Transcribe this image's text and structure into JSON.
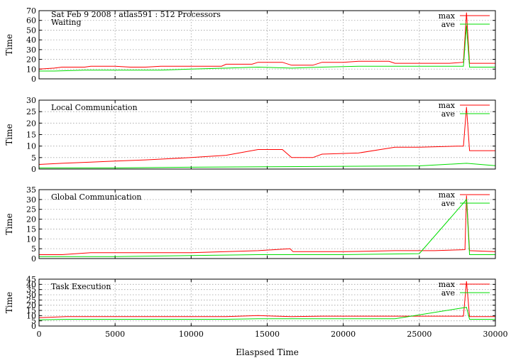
{
  "chart_data": {
    "type": "line",
    "title": "Sat Feb 9 2008 : atlas591 : 512 Processors",
    "xlabel": "Elaspsed Time",
    "xlim": [
      0,
      30000
    ],
    "xticks": [
      "0",
      "5000",
      "10000",
      "15000",
      "20000",
      "25000",
      "30000"
    ],
    "grid": true,
    "legend_placement": "top-right",
    "colors": {
      "max": "#ff0000",
      "ave": "#00dd00"
    },
    "panels": [
      {
        "name": "Waiting",
        "ylabel": "Time",
        "ylim": [
          0,
          70
        ],
        "yticks": [
          "0",
          "10",
          "20",
          "30",
          "40",
          "50",
          "60",
          "70"
        ],
        "series": [
          {
            "name": "max",
            "x": [
              0,
              1000,
              1500,
              3000,
              3400,
              4000,
              5000,
              6000,
              7000,
              8000,
              9000,
              10000,
              12000,
              12300,
              14000,
              14400,
              16000,
              16600,
              18000,
              18600,
              20000,
              21000,
              23000,
              23400,
              25000,
              26000,
              27000,
              27900,
              28100,
              28300,
              29000,
              30000
            ],
            "values": [
              10,
              11,
              12,
              12,
              13,
              13,
              13,
              12,
              12,
              13,
              13,
              13,
              13,
              15,
              15,
              17,
              17,
              14,
              14,
              17,
              17,
              18,
              18,
              16,
              16,
              16,
              16,
              17,
              68,
              16,
              16,
              16
            ]
          },
          {
            "name": "ave",
            "x": [
              0,
              1000,
              3000,
              5000,
              8000,
              10000,
              12300,
              14400,
              16600,
              18600,
              21000,
              23400,
              26000,
              27900,
              28100,
              28300,
              30000
            ],
            "values": [
              8,
              8,
              9,
              9,
              9,
              10,
              11,
              12,
              11,
              12,
              13,
              13,
              13,
              13,
              55,
              12,
              12
            ]
          }
        ]
      },
      {
        "name": "Local Communication",
        "ylabel": "Time",
        "ylim": [
          0,
          30
        ],
        "yticks": [
          "0",
          "5",
          "10",
          "15",
          "20",
          "25",
          "30"
        ],
        "series": [
          {
            "name": "max",
            "x": [
              0,
              1500,
              3400,
              5000,
              7000,
              8600,
              10000,
              12300,
              14400,
              16000,
              16600,
              18000,
              18600,
              21000,
              23400,
              25000,
              27500,
              27900,
              28100,
              28300,
              30000
            ],
            "values": [
              2,
              2.5,
              3,
              3.5,
              4,
              4.5,
              5,
              6,
              8.5,
              8.5,
              5,
              5,
              6.5,
              7,
              9.5,
              9.5,
              10,
              10,
              27,
              8,
              8
            ]
          },
          {
            "name": "ave",
            "x": [
              0,
              5000,
              10000,
              15000,
              20000,
              25000,
              28100,
              30000
            ],
            "values": [
              0.5,
              0.5,
              0.8,
              1,
              1.2,
              1.4,
              2.5,
              1.5
            ]
          }
        ]
      },
      {
        "name": "Global Communication",
        "ylabel": "Time",
        "ylim": [
          0,
          35
        ],
        "yticks": [
          "0",
          "5",
          "10",
          "15",
          "20",
          "25",
          "30",
          "35"
        ],
        "series": [
          {
            "name": "max",
            "x": [
              0,
              1500,
              3400,
              5000,
              7000,
              10000,
              12300,
              14400,
              16500,
              16700,
              20000,
              23400,
              26000,
              28000,
              28100,
              28300,
              30000
            ],
            "values": [
              2,
              2,
              3,
              3,
              3,
              3,
              3.5,
              4,
              5,
              3.5,
              3.5,
              4,
              4,
              4.5,
              32,
              4,
              3.5
            ]
          },
          {
            "name": "ave",
            "x": [
              0,
              5000,
              10000,
              14400,
              16600,
              20000,
              25000,
              28100,
              28300,
              30000
            ],
            "values": [
              1,
              1,
              1.5,
              2,
              2,
              2,
              2.5,
              30,
              2,
              2
            ]
          }
        ]
      },
      {
        "name": "Task Execution",
        "ylabel": "Time",
        "ylim": [
          0,
          45
        ],
        "yticks": [
          "0",
          "5",
          "10",
          "15",
          "20",
          "25",
          "30",
          "35",
          "40",
          "45"
        ],
        "series": [
          {
            "name": "max",
            "x": [
              0,
              1800,
              4000,
              8000,
              12300,
              14400,
              16600,
              18600,
              21000,
              23400,
              27900,
              28100,
              28300,
              30000
            ],
            "values": [
              8,
              9,
              9,
              9,
              9,
              10,
              9,
              9.5,
              9.5,
              9.5,
              9.5,
              43,
              9,
              9
            ]
          },
          {
            "name": "ave",
            "x": [
              0,
              1800,
              8000,
              12300,
              14400,
              18600,
              23400,
              28100,
              28300,
              30000
            ],
            "values": [
              6,
              6.5,
              6.5,
              6.5,
              7,
              7,
              7,
              18,
              6.5,
              6.5
            ]
          }
        ]
      }
    ]
  }
}
